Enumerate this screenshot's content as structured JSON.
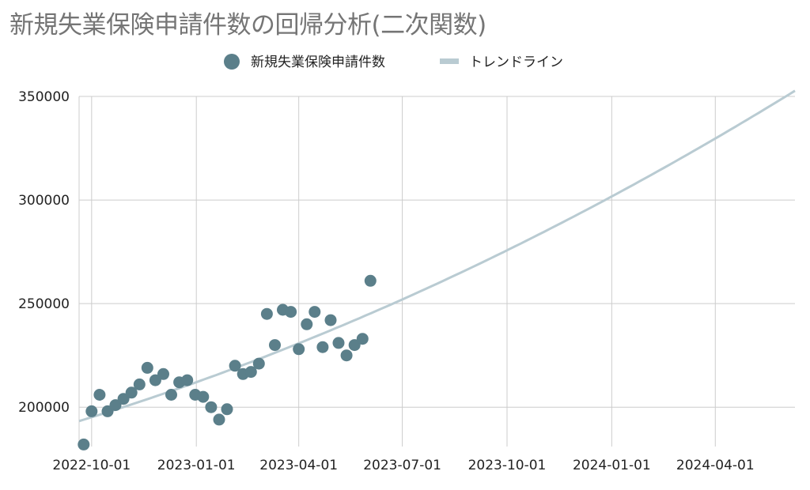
{
  "chart_data": {
    "type": "scatter",
    "title": "新規失業保険申請件数の回帰分析(二次関数)",
    "xlabel": "",
    "ylabel": "",
    "x_axis_type": "date",
    "xlim": [
      "2022-09-20",
      "2024-06-10"
    ],
    "ylim": [
      181000,
      350000
    ],
    "yticks": [
      200000,
      250000,
      300000,
      350000
    ],
    "ytick_labels": [
      "200000",
      "250000",
      "300000",
      "350000"
    ],
    "xticks": [
      "2022-10-01",
      "2023-01-01",
      "2023-04-01",
      "2023-07-01",
      "2023-10-01",
      "2024-01-01",
      "2024-04-01"
    ],
    "grid": true,
    "legend_position": "top-center",
    "colors": {
      "points": "#5b7f8a",
      "trendline": "#b9cbd2",
      "title": "#757575",
      "grid": "#cccccc"
    },
    "series": [
      {
        "name": "新規失業保険申請件数",
        "kind": "scatter",
        "points": [
          {
            "x": "2022-09-24",
            "y": 182000
          },
          {
            "x": "2022-10-01",
            "y": 198000
          },
          {
            "x": "2022-10-08",
            "y": 206000
          },
          {
            "x": "2022-10-15",
            "y": 198000
          },
          {
            "x": "2022-10-22",
            "y": 201000
          },
          {
            "x": "2022-10-29",
            "y": 204000
          },
          {
            "x": "2022-11-05",
            "y": 207000
          },
          {
            "x": "2022-11-12",
            "y": 211000
          },
          {
            "x": "2022-11-19",
            "y": 219000
          },
          {
            "x": "2022-11-26",
            "y": 213000
          },
          {
            "x": "2022-12-03",
            "y": 216000
          },
          {
            "x": "2022-12-10",
            "y": 206000
          },
          {
            "x": "2022-12-17",
            "y": 212000
          },
          {
            "x": "2022-12-24",
            "y": 213000
          },
          {
            "x": "2022-12-31",
            "y": 206000
          },
          {
            "x": "2023-01-07",
            "y": 205000
          },
          {
            "x": "2023-01-14",
            "y": 200000
          },
          {
            "x": "2023-01-21",
            "y": 194000
          },
          {
            "x": "2023-01-28",
            "y": 199000
          },
          {
            "x": "2023-02-04",
            "y": 220000
          },
          {
            "x": "2023-02-11",
            "y": 216000
          },
          {
            "x": "2023-02-18",
            "y": 217000
          },
          {
            "x": "2023-02-25",
            "y": 221000
          },
          {
            "x": "2023-03-04",
            "y": 245000
          },
          {
            "x": "2023-03-11",
            "y": 230000
          },
          {
            "x": "2023-03-18",
            "y": 247000
          },
          {
            "x": "2023-03-25",
            "y": 246000
          },
          {
            "x": "2023-04-01",
            "y": 228000
          },
          {
            "x": "2023-04-08",
            "y": 240000
          },
          {
            "x": "2023-04-15",
            "y": 246000
          },
          {
            "x": "2023-04-22",
            "y": 229000
          },
          {
            "x": "2023-04-29",
            "y": 242000
          },
          {
            "x": "2023-05-06",
            "y": 231000
          },
          {
            "x": "2023-05-13",
            "y": 225000
          },
          {
            "x": "2023-05-20",
            "y": 230000
          },
          {
            "x": "2023-05-27",
            "y": 233000
          },
          {
            "x": "2023-06-03",
            "y": 261000
          }
        ]
      },
      {
        "name": "トレンドライン",
        "kind": "line",
        "fit": "quadratic",
        "points": [
          {
            "x": "2022-09-20",
            "y": 195000
          },
          {
            "x": "2023-01-01",
            "y": 210000
          },
          {
            "x": "2023-04-01",
            "y": 230000
          },
          {
            "x": "2023-07-01",
            "y": 252000
          },
          {
            "x": "2023-10-01",
            "y": 276000
          },
          {
            "x": "2024-01-01",
            "y": 302000
          },
          {
            "x": "2024-04-01",
            "y": 333000
          },
          {
            "x": "2024-06-10",
            "y": 350000
          }
        ]
      }
    ]
  }
}
